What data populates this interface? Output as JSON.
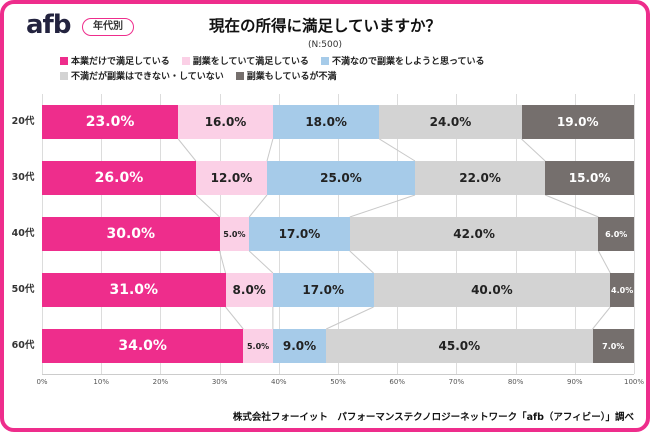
{
  "header": {
    "logo": "afb",
    "badge": "年代別",
    "title": "現在の所得に満足していますか？",
    "sample": "(N:500)"
  },
  "legend": [
    {
      "label": "本業だけで満足している",
      "color": "#EE2D8C"
    },
    {
      "label": "副業をしていて満足している",
      "color": "#FBD0E6"
    },
    {
      "label": "不満なので副業をしようと思っている",
      "color": "#A6CBE9"
    },
    {
      "label": "不満だが副業はできない・していない",
      "color": "#D3D3D3"
    },
    {
      "label": "副業もしているが不満",
      "color": "#756F6D"
    }
  ],
  "chart_data": {
    "type": "bar",
    "stacked": true,
    "orientation": "horizontal",
    "title": "現在の所得に満足していますか？",
    "sample_size": "(N:500)",
    "categories": [
      "20代",
      "30代",
      "40代",
      "50代",
      "60代"
    ],
    "series": [
      {
        "name": "本業だけで満足している",
        "color": "#EE2D8C",
        "values": [
          23.0,
          26.0,
          30.0,
          31.0,
          34.0
        ]
      },
      {
        "name": "副業をしていて満足している",
        "color": "#FBD0E6",
        "values": [
          16.0,
          12.0,
          5.0,
          8.0,
          5.0
        ]
      },
      {
        "name": "不満なので副業をしようと思っている",
        "color": "#A6CBE9",
        "values": [
          18.0,
          25.0,
          17.0,
          17.0,
          9.0
        ]
      },
      {
        "name": "不満だが副業はできない・していない",
        "color": "#D3D3D3",
        "values": [
          24.0,
          22.0,
          42.0,
          40.0,
          45.0
        ]
      },
      {
        "name": "副業もしているが不満",
        "color": "#756F6D",
        "values": [
          19.0,
          15.0,
          6.0,
          4.0,
          7.0
        ]
      }
    ],
    "xlim": [
      0,
      100
    ],
    "x_ticks": [
      "0%",
      "10%",
      "20%",
      "30%",
      "40%",
      "50%",
      "60%",
      "70%",
      "80%",
      "90%",
      "100%"
    ],
    "grid": true,
    "legend_position": "top"
  },
  "footer": {
    "source": "株式会社フォーイット　パフォーマンステクノロジーネットワーク「afb（アフィビー）」調べ"
  }
}
